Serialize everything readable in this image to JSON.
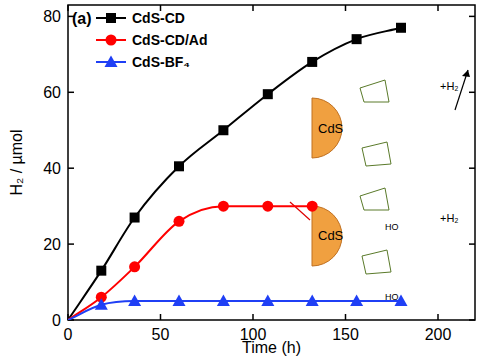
{
  "chart_data": {
    "type": "line",
    "x_label": "Time (h)",
    "y_label": "H₂ / µmol",
    "x": [
      0,
      18,
      36,
      60,
      84,
      108,
      132,
      156,
      180
    ],
    "series": [
      {
        "name": "CdS-CD",
        "color": "#000000",
        "marker": "square",
        "values": [
          0,
          13,
          27,
          40.5,
          50,
          59.5,
          68,
          74,
          77
        ]
      },
      {
        "name": "CdS-CD/Ad",
        "color": "#ff0000",
        "marker": "circle",
        "values": [
          0,
          6,
          14,
          26,
          30,
          30,
          30,
          null,
          null
        ]
      },
      {
        "name": "CdS-BF₄",
        "color": "#1f3ff5",
        "marker": "triangle",
        "values": [
          0,
          4,
          5,
          5,
          5,
          5,
          5,
          5,
          5
        ]
      }
    ],
    "xlim": [
      0,
      220
    ],
    "xticks": [
      0,
      50,
      100,
      150,
      200
    ],
    "ylim": [
      0,
      83
    ],
    "yticks": [
      0,
      20,
      40,
      60,
      80
    ],
    "grid": false,
    "legend": "top-left",
    "annotations": [
      "(a)",
      "CdS",
      "+H₂",
      "CdS",
      "+H₂",
      "HO",
      "HO"
    ]
  }
}
